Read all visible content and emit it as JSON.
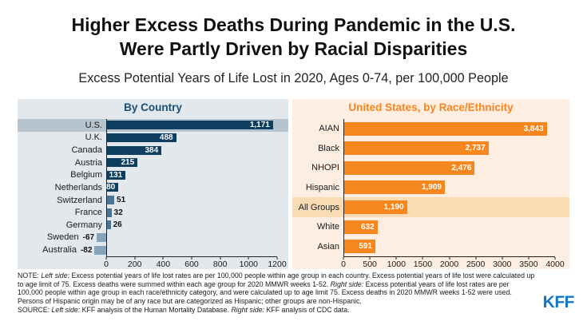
{
  "title_lines": [
    "Higher Excess Deaths During Pandemic in the U.S.",
    "Were Partly Driven by Racial Disparities"
  ],
  "subtitle": "Excess Potential Years of Life Lost in 2020, Ages 0-74, per 100,000 People",
  "chart_data": [
    {
      "id": "by-country",
      "type": "bar",
      "orientation": "horizontal",
      "title": "By Country",
      "categories": [
        "U.S.",
        "U.K.",
        "Canada",
        "Austria",
        "Belgium",
        "Netherlands",
        "Switzerland",
        "France",
        "Germany",
        "Sweden",
        "Australia"
      ],
      "values": [
        1171,
        488,
        384,
        215,
        131,
        80,
        51,
        32,
        26,
        -67,
        -82
      ],
      "value_labels": [
        "1,171",
        "488",
        "384",
        "215",
        "131",
        "80",
        "51",
        "32",
        "26",
        "-67",
        "-82"
      ],
      "label_inside": [
        true,
        true,
        true,
        true,
        true,
        true,
        false,
        false,
        false,
        false,
        false
      ],
      "highlight_category": "U.S.",
      "xlabel": "",
      "ylabel": "",
      "xlim": [
        0,
        1200
      ],
      "xticks": [
        0,
        200,
        400,
        600,
        800,
        1000,
        1200
      ],
      "grid": false,
      "legend": "none",
      "colors": {
        "bar": "#0E3E60",
        "small_bar": "#4A7495",
        "negative_bar": "#86A3B8",
        "highlight_band": "#B6C4CF",
        "panel_bg": "#E3E8EC",
        "title": "#1A4E74"
      }
    },
    {
      "id": "us-by-race-ethnicity",
      "type": "bar",
      "orientation": "horizontal",
      "title": "United States, by Race/Ethnicity",
      "categories": [
        "AIAN",
        "Black",
        "NHOPI",
        "Hispanic",
        "All Groups",
        "White",
        "Asian"
      ],
      "values": [
        3843,
        2737,
        2476,
        1909,
        1190,
        632,
        591
      ],
      "value_labels": [
        "3,843",
        "2,737",
        "2,476",
        "1,909",
        "1,190",
        "632",
        "591"
      ],
      "label_inside": [
        true,
        true,
        true,
        true,
        true,
        true,
        true
      ],
      "highlight_category": "All Groups",
      "xlabel": "",
      "ylabel": "",
      "xlim": [
        0,
        4000
      ],
      "xticks": [
        0,
        500,
        1000,
        1500,
        2000,
        2500,
        3000,
        3500,
        4000
      ],
      "grid": false,
      "legend": "none",
      "colors": {
        "bar": "#F6871F",
        "small_bar": "#F6871F",
        "negative_bar": "#F6871F",
        "highlight_band": "#FADCB4",
        "panel_bg": "#FDEEE1",
        "title": "#F6871F"
      }
    }
  ],
  "note_segments": [
    {
      "t": "NOTE: ",
      "i": false
    },
    {
      "t": "Left side:",
      "i": true
    },
    {
      "t": " Excess potential years of life lost rates are per 100,000 people within age group in each country. Excess potential years of life lost were calculated up to age limit of 75. Excess deaths were summed within each age group for 2020 MMWR weeks 1-52. ",
      "i": false
    },
    {
      "t": "Right side:",
      "i": true
    },
    {
      "t": " Excess potential years of life lost rates are per 100,000 people within age group in each race/ethnicity category, and were calculated up to age limit 75. Excess deaths in 2020 MMWR weeks 1-52 were used. Persons of Hispanic origin may be of any race but are categorized as Hispanic; other groups are non-Hispanic.",
      "i": false
    }
  ],
  "source_segments": [
    {
      "t": "SOURCE: ",
      "i": false
    },
    {
      "t": "Left side:",
      "i": true
    },
    {
      "t": " KFF analysis of the Human Mortality Database. ",
      "i": false
    },
    {
      "t": "Right side:",
      "i": true
    },
    {
      "t": " KFF analysis of CDC data.",
      "i": false
    }
  ],
  "branding": {
    "logo_text": "KFF",
    "logo_color": "#1277C5"
  }
}
